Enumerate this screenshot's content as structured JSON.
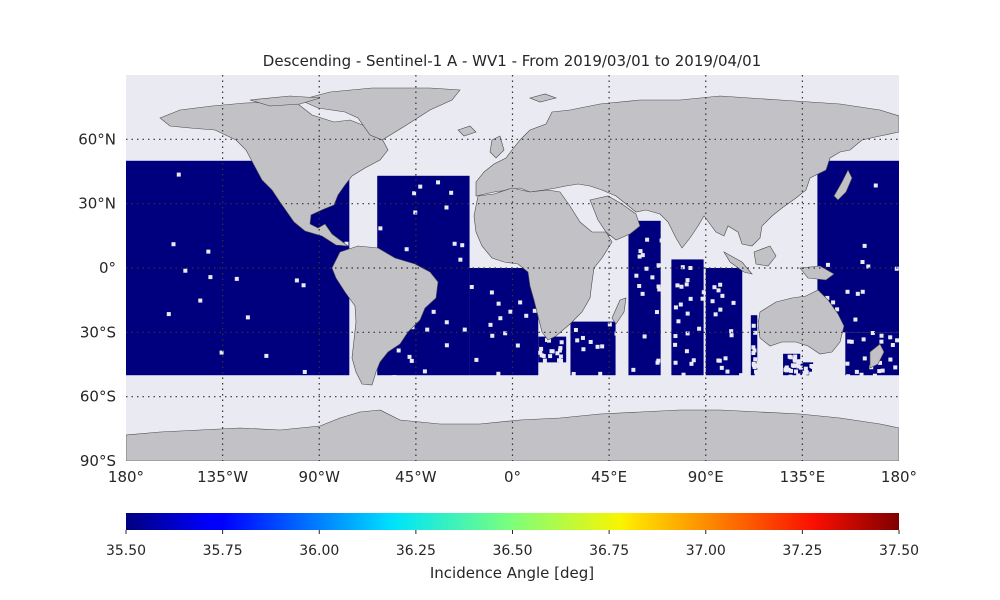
{
  "title": "Descending - Sentinel-1 A - WV1 - From 2019/03/01 to 2019/04/01",
  "map": {
    "projection": "equirectangular",
    "lon_range": [
      -180,
      180
    ],
    "lat_range": [
      -90,
      90
    ],
    "ocean_color": "#eaeaf2",
    "land_color": "#c1c1c6",
    "data_color": "#00007f",
    "gridlines": "dotted",
    "lat_ticks": [
      {
        "value": 60,
        "label": "60°N"
      },
      {
        "value": 30,
        "label": "30°N"
      },
      {
        "value": 0,
        "label": "0°"
      },
      {
        "value": -30,
        "label": "30°S"
      },
      {
        "value": -60,
        "label": "60°S"
      },
      {
        "value": -90,
        "label": "90°S"
      }
    ],
    "lon_ticks": [
      {
        "value": -180,
        "label": "180°"
      },
      {
        "value": -135,
        "label": "135°W"
      },
      {
        "value": -90,
        "label": "90°W"
      },
      {
        "value": -45,
        "label": "45°W"
      },
      {
        "value": 0,
        "label": "0°"
      },
      {
        "value": 45,
        "label": "45°E"
      },
      {
        "value": 90,
        "label": "90°E"
      },
      {
        "value": 135,
        "label": "135°E"
      },
      {
        "value": 180,
        "label": "180°"
      }
    ],
    "coverage_lat_range": [
      -50,
      50
    ],
    "coverage_swaths": [
      {
        "lon": [
          -180,
          -76
        ],
        "lat": [
          -50,
          50
        ]
      },
      {
        "lon": [
          -63,
          -20
        ],
        "lat": [
          -50,
          43
        ]
      },
      {
        "lon": [
          -20,
          12
        ],
        "lat": [
          -50,
          0
        ]
      },
      {
        "lon": [
          12,
          25
        ],
        "lat": [
          -44,
          -32
        ]
      },
      {
        "lon": [
          27,
          48
        ],
        "lat": [
          -50,
          -25
        ]
      },
      {
        "lon": [
          54,
          69
        ],
        "lat": [
          -50,
          22
        ]
      },
      {
        "lon": [
          74,
          89
        ],
        "lat": [
          -50,
          4
        ]
      },
      {
        "lon": [
          90,
          107
        ],
        "lat": [
          -50,
          0
        ]
      },
      {
        "lon": [
          111,
          114
        ],
        "lat": [
          -50,
          -22
        ]
      },
      {
        "lon": [
          126,
          134
        ],
        "lat": [
          -50,
          -40
        ]
      },
      {
        "lon": [
          134,
          140
        ],
        "lat": [
          -50,
          -44
        ]
      },
      {
        "lon": [
          142,
          180
        ],
        "lat": [
          -30,
          50
        ]
      },
      {
        "lon": [
          155,
          180
        ],
        "lat": [
          -50,
          -30
        ]
      }
    ]
  },
  "colorbar": {
    "colormap": "jet",
    "min": 35.5,
    "max": 37.5,
    "ticks": [
      "35.50",
      "35.75",
      "36.00",
      "36.25",
      "36.50",
      "36.75",
      "37.00",
      "37.25",
      "37.50"
    ],
    "label": "Incidence Angle [deg]"
  }
}
